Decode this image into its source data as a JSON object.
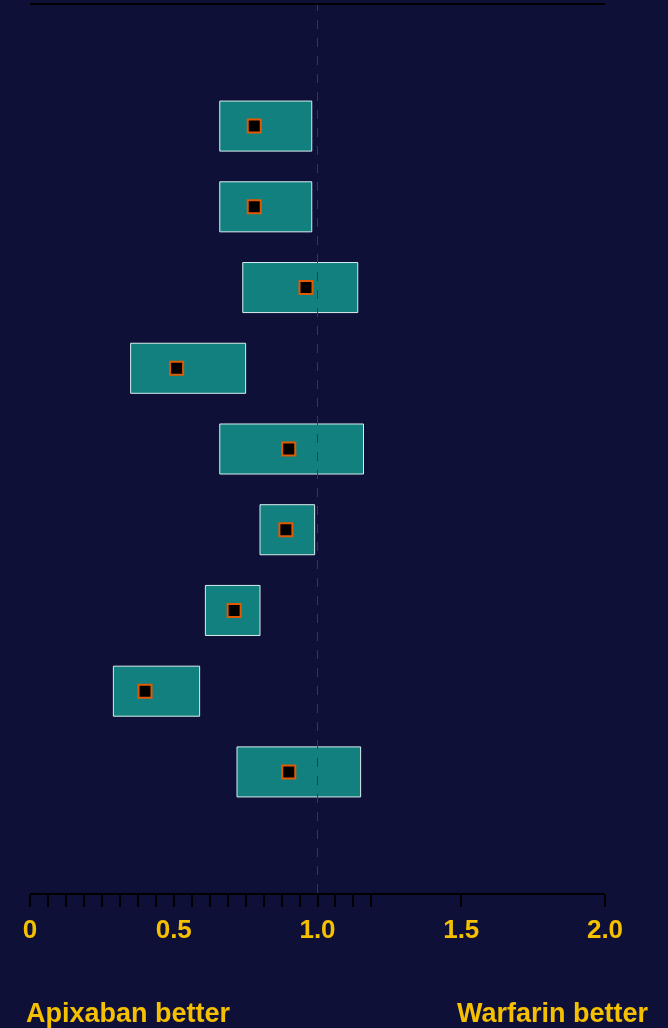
{
  "chart_data": {
    "type": "bar",
    "orientation": "horizontal",
    "categories": [
      null,
      null,
      null,
      null,
      null,
      null,
      null,
      null,
      null,
      null,
      null
    ],
    "series": [
      {
        "type": "bar",
        "color": "#138080",
        "base": [
          null,
          0.66,
          0.66,
          0.74,
          0.35,
          0.66,
          0.8,
          0.61,
          0.29,
          0.72,
          null
        ],
        "values": [
          null,
          0.32,
          0.32,
          0.4,
          0.4,
          0.5,
          0.19,
          0.19,
          0.3,
          0.43,
          null
        ]
      },
      {
        "type": "scatter",
        "color": "#e05a00",
        "marker": "square",
        "values": [
          null,
          0.78,
          0.78,
          0.96,
          0.51,
          0.9,
          0.89,
          0.71,
          0.4,
          0.9,
          null
        ]
      }
    ],
    "xlim": [
      0,
      2
    ],
    "xticks": [
      0,
      {
        "value": 0.0625,
        "label": null
      },
      {
        "value": 0.125,
        "label": null
      },
      {
        "value": 0.1875,
        "label": null
      },
      {
        "value": 0.25,
        "label": null
      },
      {
        "value": 0.3125,
        "label": null
      },
      {
        "value": 0.375,
        "label": null
      },
      {
        "value": 0.4375,
        "label": null
      },
      0.5,
      {
        "value": 0.5625,
        "label": null
      },
      {
        "value": 0.625,
        "label": null
      },
      {
        "value": 0.6875,
        "label": null
      },
      {
        "value": 0.75,
        "label": null
      },
      {
        "value": 0.8125,
        "label": null
      },
      {
        "value": 0.875,
        "label": null
      },
      {
        "value": 0.9375,
        "label": null
      },
      {
        "value": 1,
        "label": "1.0"
      },
      {
        "value": 1.0625,
        "label": null
      },
      {
        "value": 1.125,
        "label": null
      },
      {
        "value": 1.1875,
        "label": null
      },
      1.5,
      {
        "value": 2,
        "label": "2.0"
      }
    ],
    "ref_lines": [
      {
        "axis": "x",
        "value": 1,
        "color": "#c00000",
        "line_style": "dashed"
      }
    ],
    "annotations": [
      "Apixaban better",
      "Warfarin better"
    ],
    "legend": false
  }
}
